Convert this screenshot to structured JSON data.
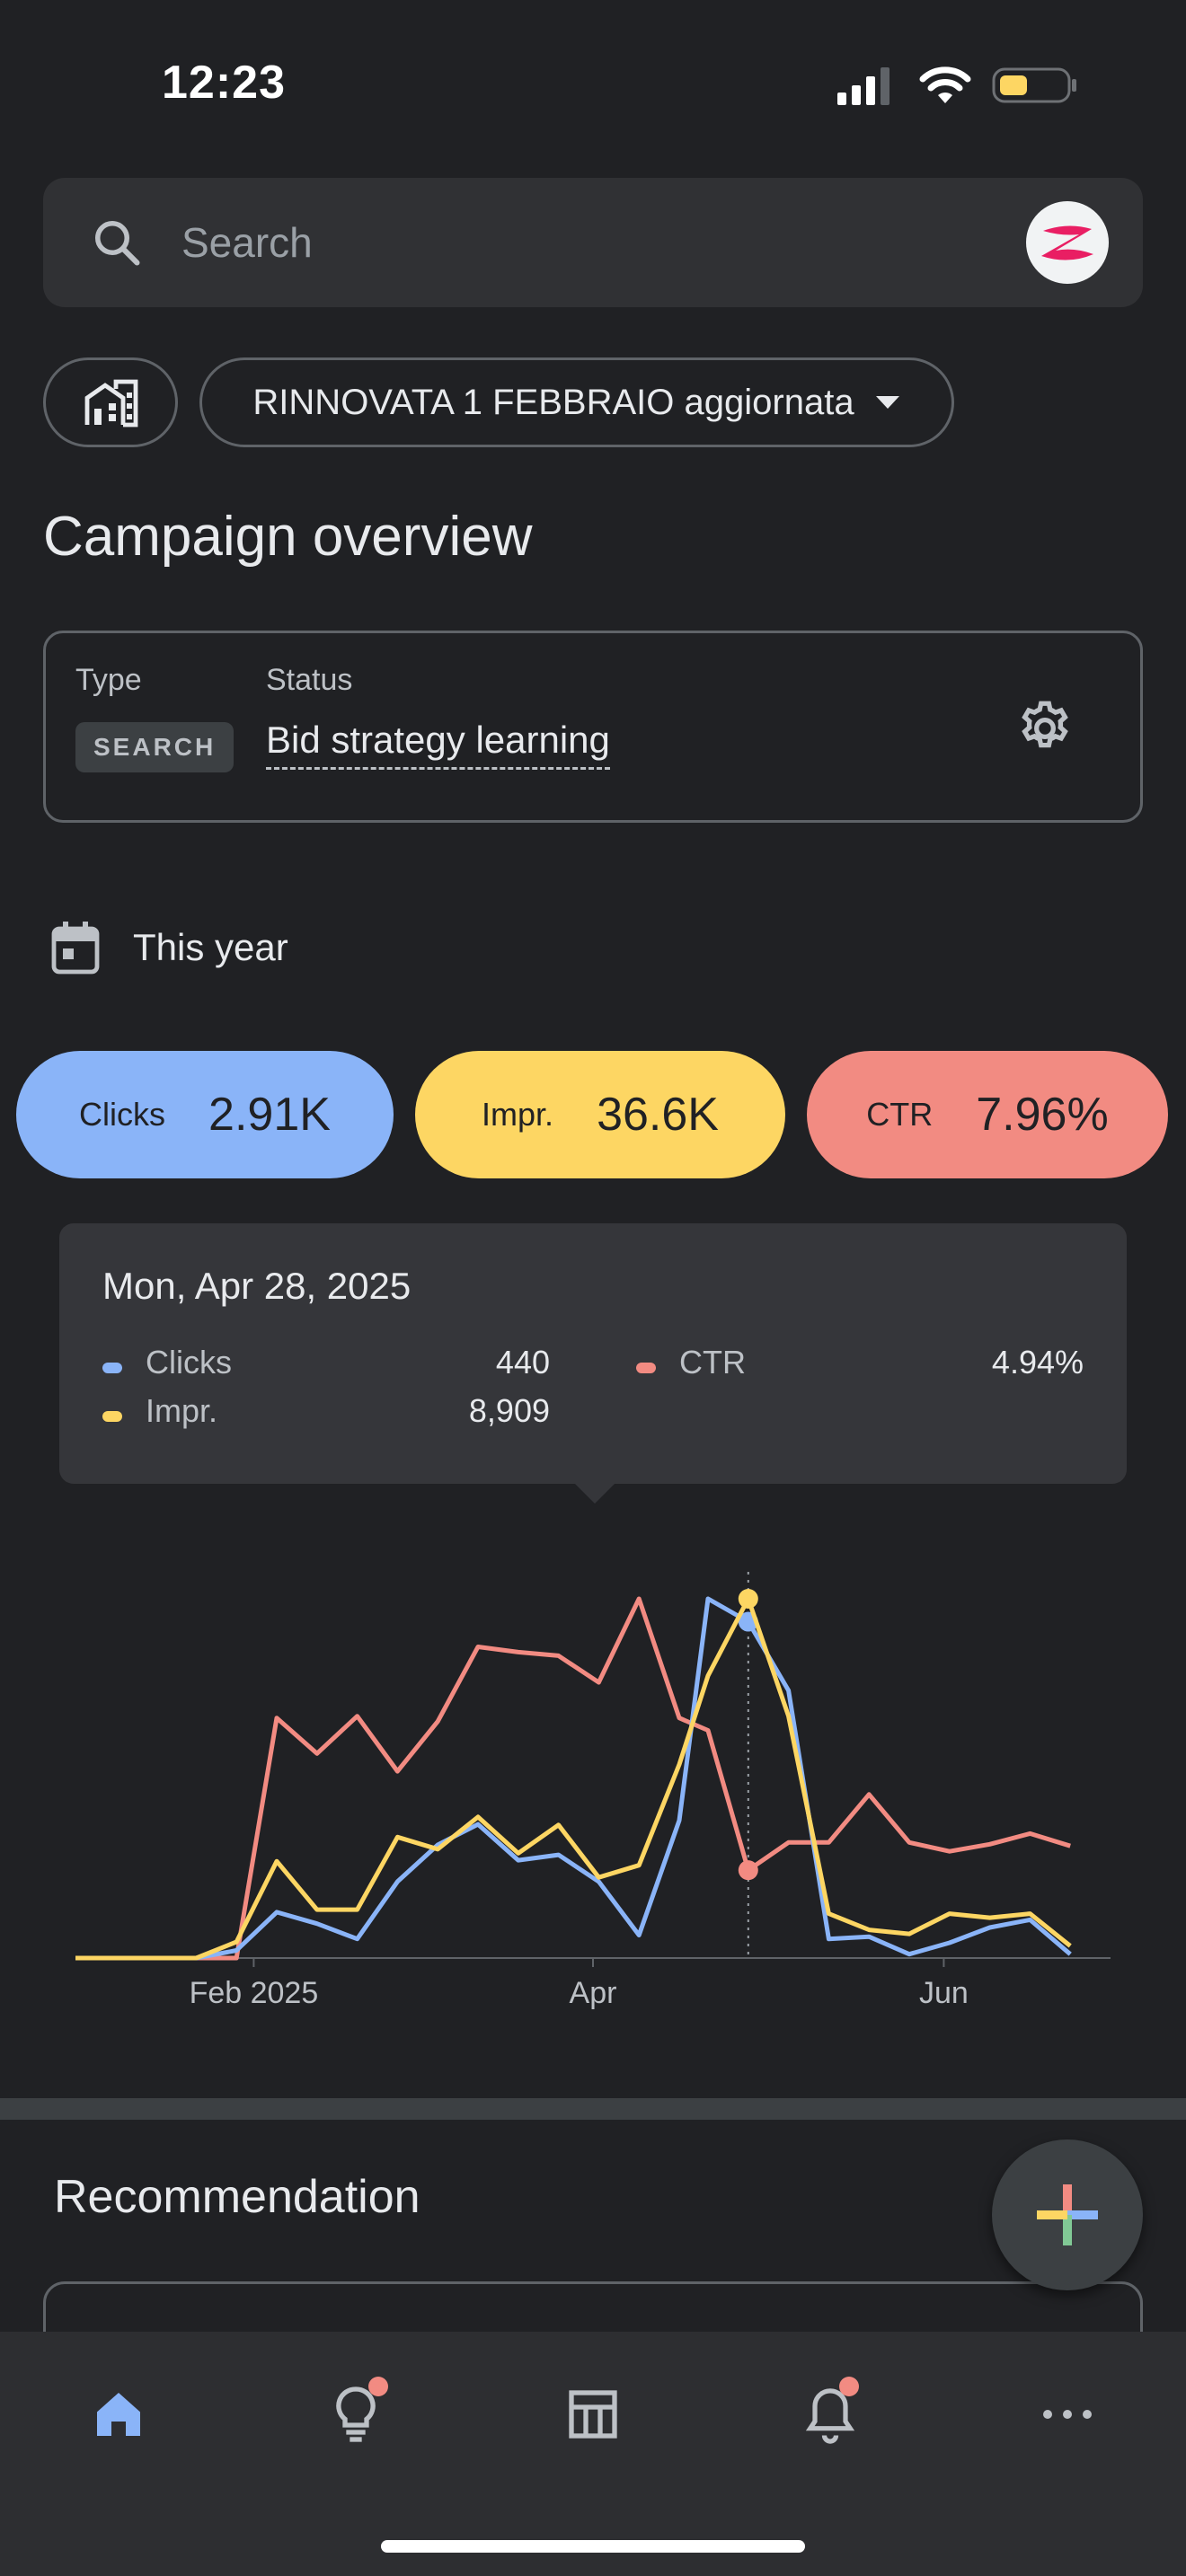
{
  "status_bar": {
    "time": "12:23"
  },
  "search": {
    "placeholder": "Search"
  },
  "account": {
    "campaign_name": "RINNOVATA 1 FEBBRAIO aggiornata"
  },
  "page": {
    "title": "Campaign overview"
  },
  "campaign": {
    "type_label": "Type",
    "type_value": "SEARCH",
    "status_label": "Status",
    "status_value": "Bid strategy learning"
  },
  "date_range": {
    "label": "This year"
  },
  "metrics": [
    {
      "label": "Clicks",
      "value": "2.91K",
      "color": "#8ab4f8"
    },
    {
      "label": "Impr.",
      "value": "36.6K",
      "color": "#fdd663"
    },
    {
      "label": "CTR",
      "value": "7.96%",
      "color": "#f28b82"
    }
  ],
  "tooltip": {
    "date": "Mon, Apr 28, 2025",
    "clicks_label": "Clicks",
    "clicks_value": "440",
    "impr_label": "Impr.",
    "impr_value": "8,909",
    "ctr_label": "CTR",
    "ctr_value": "4.94%"
  },
  "chart_data": {
    "type": "line",
    "x_tick_labels": [
      "Feb 2025",
      "Apr",
      "Jun"
    ],
    "x": [
      "2025-01-01",
      "2025-01-08",
      "2025-01-15",
      "2025-01-22",
      "2025-01-29",
      "2025-02-05",
      "2025-02-12",
      "2025-02-19",
      "2025-02-26",
      "2025-03-05",
      "2025-03-12",
      "2025-03-19",
      "2025-03-26",
      "2025-04-02",
      "2025-04-09",
      "2025-04-16",
      "2025-04-21",
      "2025-04-28",
      "2025-05-05",
      "2025-05-12",
      "2025-05-19",
      "2025-05-26",
      "2025-06-02",
      "2025-06-09",
      "2025-06-16",
      "2025-06-23"
    ],
    "series": [
      {
        "name": "Clicks",
        "color": "#8ab4f8",
        "values": [
          0,
          0,
          0,
          0,
          10,
          60,
          45,
          25,
          100,
          148,
          175,
          128,
          135,
          100,
          30,
          180,
          470,
          440,
          350,
          25,
          28,
          5,
          20,
          40,
          50,
          5
        ]
      },
      {
        "name": "Impr.",
        "color": "#fdd663",
        "values": [
          0,
          0,
          0,
          0,
          400,
          2400,
          1200,
          1200,
          3000,
          2700,
          3500,
          2600,
          3300,
          2000,
          2300,
          4800,
          7000,
          8909,
          6000,
          1100,
          700,
          600,
          1100,
          1000,
          1100,
          300
        ]
      },
      {
        "name": "CTR",
        "color": "#f28b82",
        "values": [
          0,
          0,
          0,
          0,
          0,
          13.5,
          11.5,
          13.6,
          10.5,
          13.3,
          17.5,
          17.2,
          17.0,
          15.5,
          20.2,
          13.5,
          12.8,
          4.94,
          6.5,
          6.5,
          9.2,
          6.5,
          6.0,
          6.4,
          7.0,
          6.3
        ]
      }
    ],
    "highlight_index": 17,
    "grid": false,
    "legend": "none"
  },
  "recommendation": {
    "title": "Recommendation"
  },
  "nav": {
    "items": [
      {
        "name": "home",
        "active": true
      },
      {
        "name": "recommendations",
        "badge": true
      },
      {
        "name": "campaigns"
      },
      {
        "name": "notifications",
        "badge": true
      },
      {
        "name": "more"
      }
    ]
  }
}
